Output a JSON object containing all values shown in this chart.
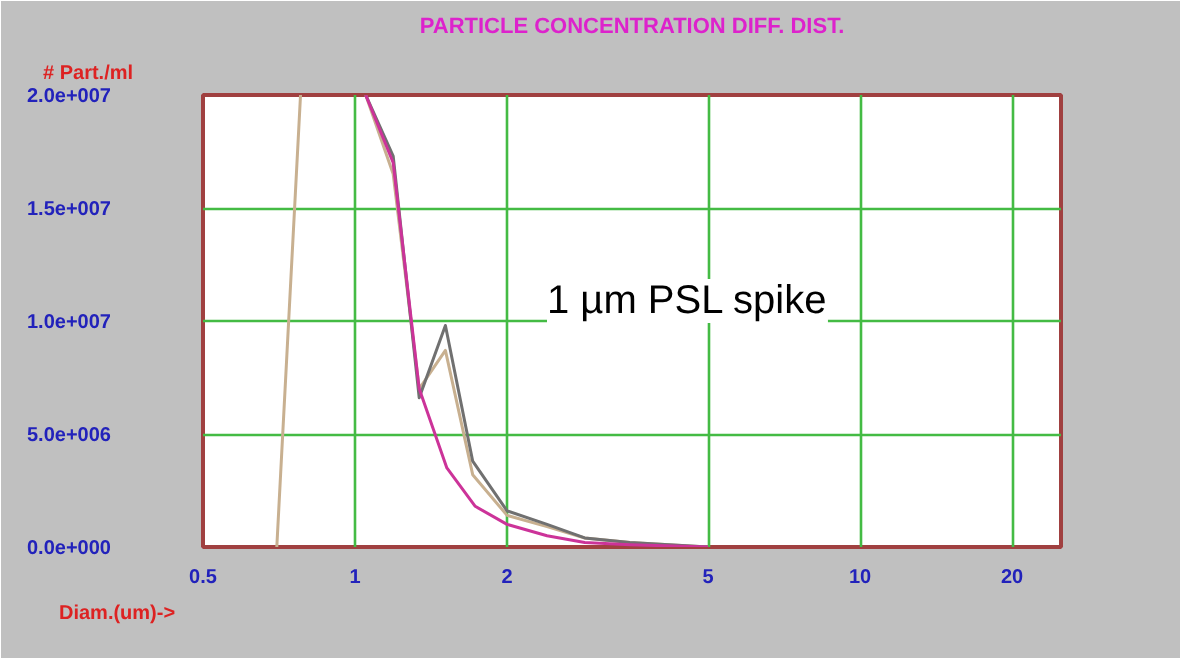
{
  "chart_data": {
    "type": "line",
    "title": "PARTICLE CONCENTRATION DIFF. DIST.",
    "xlabel": "Diam.(um)->",
    "ylabel": "# Part./ml",
    "annotations": [
      "1 µm PSL spike"
    ],
    "log": "x",
    "grid": true,
    "marker": "none",
    "line_style": "solid",
    "xlim": [
      0.5,
      25
    ],
    "xticks": [
      0.5,
      1,
      2,
      5,
      10,
      20
    ],
    "ylim": [
      0,
      20000000
    ],
    "yticks": [
      {
        "value": 0,
        "label": "0.0e+000"
      },
      {
        "value": 5000000,
        "label": "5.0e+006"
      },
      {
        "value": 10000000,
        "label": "1.0e+007"
      },
      {
        "value": 15000000,
        "label": "1.5e+007"
      },
      {
        "value": 20000000,
        "label": "2.0e+007"
      }
    ],
    "series": [
      {
        "color": "#c8b090",
        "x": [
          0.7,
          0.78,
          0.9,
          1.05,
          1.19,
          1.34,
          1.51,
          1.71,
          2.0,
          2.4,
          2.85,
          3.5,
          5.0
        ],
        "values": [
          0,
          20000000,
          null,
          20000000,
          16500000,
          7000000,
          8700000,
          3200000,
          1400000,
          900000,
          400000,
          200000,
          0
        ]
      },
      {
        "color": "#707070",
        "x": [
          1.05,
          1.19,
          1.34,
          1.51,
          1.71,
          2.0,
          2.4,
          2.85,
          3.5,
          5.0
        ],
        "values": [
          20000000,
          17300000,
          6600000,
          9800000,
          3800000,
          1600000,
          1000000,
          400000,
          200000,
          0
        ]
      },
      {
        "color": "#cc3399",
        "x": [
          1.05,
          1.19,
          1.34,
          1.52,
          1.73,
          2.0,
          2.4,
          2.85,
          3.5,
          5.0
        ],
        "values": [
          20000000,
          17000000,
          7000000,
          3500000,
          1800000,
          1000000,
          500000,
          200000,
          100000,
          0
        ]
      }
    ]
  }
}
